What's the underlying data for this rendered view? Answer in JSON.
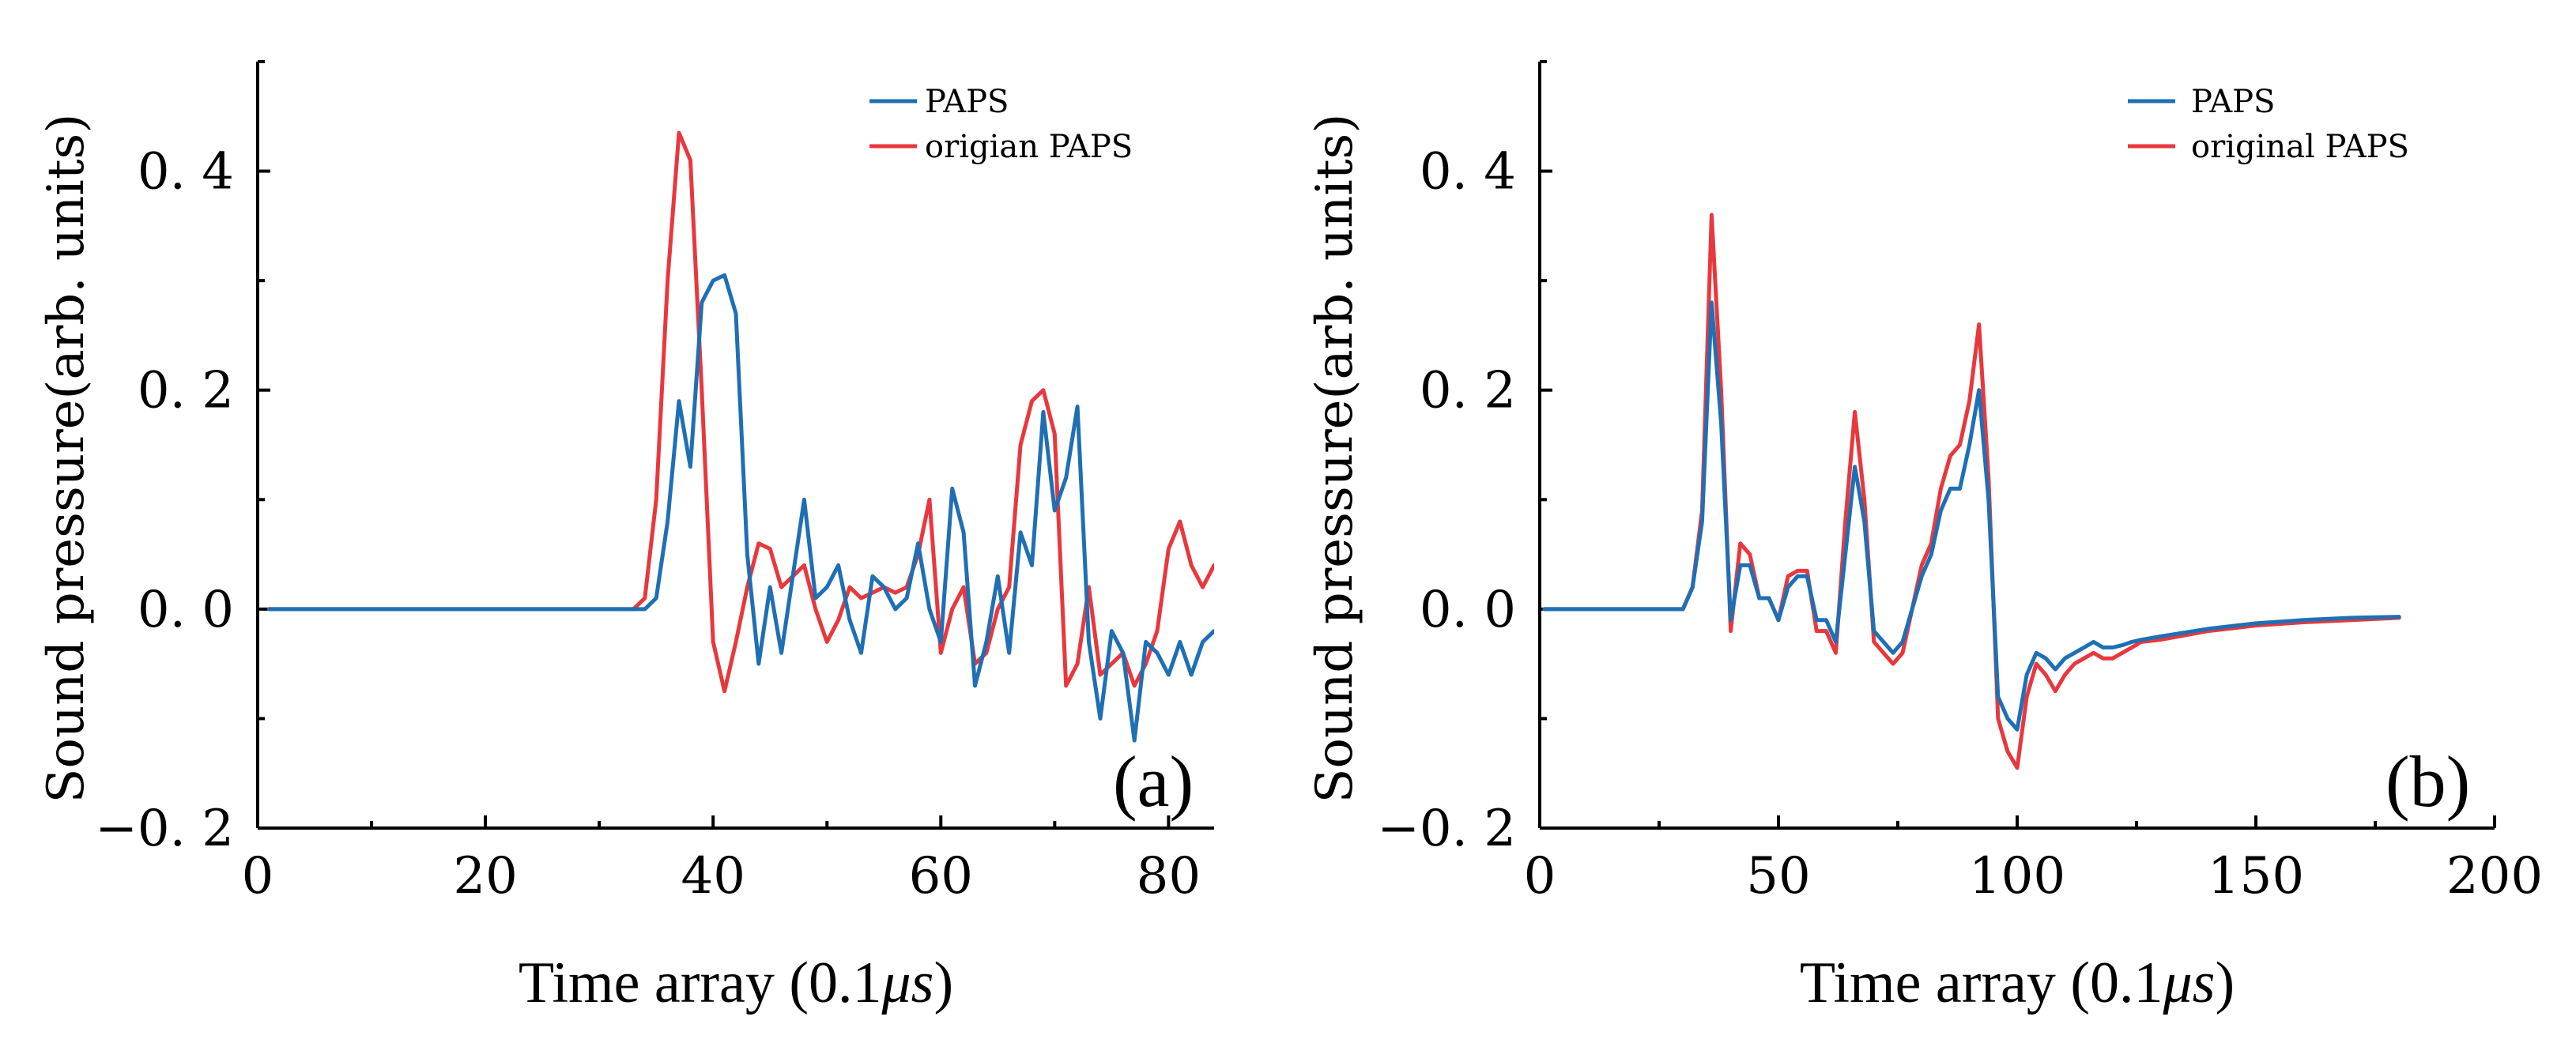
{
  "chart_data": [
    {
      "type": "line",
      "panel_label": "(a)",
      "xlabel": "Time array (0.1",
      "xlabel_unit": "μs",
      "xlabel_close": ")",
      "ylabel": "Sound pressure(arb. units)",
      "xlim": [
        0,
        84
      ],
      "ylim": [
        -0.2,
        0.5
      ],
      "xticks": [
        0,
        20,
        40,
        60,
        80
      ],
      "xtick_labels": [
        "0",
        "20",
        "40",
        "60",
        "80"
      ],
      "yticks": [
        -0.2,
        0.0,
        0.2,
        0.4
      ],
      "ytick_labels": [
        "−0. 2",
        "0. 0",
        "0. 2",
        "0. 4"
      ],
      "legend_position": "top-right",
      "series": [
        {
          "name": "PAPS",
          "color": "#1f6fb4",
          "x": [
            1,
            33,
            34,
            35,
            36,
            37,
            38,
            39,
            40,
            41,
            42,
            43,
            44,
            45,
            46,
            47,
            48,
            49,
            50,
            51,
            52,
            53,
            54,
            55,
            56,
            57,
            58,
            59,
            60,
            61,
            62,
            63,
            64,
            65,
            66,
            67,
            68,
            69,
            70,
            71,
            72,
            73,
            74,
            75,
            76,
            77,
            78,
            79,
            80,
            81,
            82,
            83,
            84
          ],
          "y": [
            0,
            0,
            0,
            0.01,
            0.08,
            0.19,
            0.13,
            0.28,
            0.3,
            0.305,
            0.27,
            0.05,
            -0.05,
            0.02,
            -0.04,
            0.03,
            0.1,
            0.01,
            0.02,
            0.04,
            -0.01,
            -0.04,
            0.03,
            0.02,
            0.0,
            0.01,
            0.06,
            0.0,
            -0.03,
            0.11,
            0.07,
            -0.07,
            -0.03,
            0.03,
            -0.04,
            0.07,
            0.04,
            0.18,
            0.09,
            0.12,
            0.185,
            -0.03,
            -0.1,
            -0.02,
            -0.04,
            -0.12,
            -0.03,
            -0.04,
            -0.06,
            -0.03,
            -0.06,
            -0.03,
            -0.02
          ]
        },
        {
          "name": "origian PAPS",
          "color": "#e8383d",
          "x": [
            1,
            33,
            34,
            35,
            36,
            37,
            38,
            39,
            40,
            41,
            42,
            43,
            44,
            45,
            46,
            47,
            48,
            49,
            50,
            51,
            52,
            53,
            54,
            55,
            56,
            57,
            58,
            59,
            60,
            61,
            62,
            63,
            64,
            65,
            66,
            67,
            68,
            69,
            70,
            71,
            72,
            73,
            74,
            75,
            76,
            77,
            78,
            79,
            80,
            81,
            82,
            83,
            84
          ],
          "y": [
            0,
            0,
            0.01,
            0.1,
            0.3,
            0.435,
            0.41,
            0.2,
            -0.03,
            -0.075,
            -0.03,
            0.02,
            0.06,
            0.055,
            0.02,
            0.03,
            0.04,
            0.0,
            -0.03,
            -0.01,
            0.02,
            0.01,
            0.015,
            0.02,
            0.015,
            0.02,
            0.05,
            0.1,
            -0.04,
            0.0,
            0.02,
            -0.05,
            -0.04,
            0.0,
            0.02,
            0.15,
            0.19,
            0.2,
            0.16,
            -0.07,
            -0.05,
            0.02,
            -0.06,
            -0.05,
            -0.04,
            -0.07,
            -0.05,
            -0.02,
            0.055,
            0.08,
            0.04,
            0.02,
            0.04
          ]
        }
      ]
    },
    {
      "type": "line",
      "panel_label": "(b)",
      "xlabel": "Time array (0.1",
      "xlabel_unit": "μs",
      "xlabel_close": ")",
      "ylabel": "Sound pressure(arb. units)",
      "xlim": [
        0,
        200
      ],
      "ylim": [
        -0.2,
        0.5
      ],
      "xticks": [
        0,
        50,
        100,
        150,
        200
      ],
      "xtick_labels": [
        "0",
        "50",
        "100",
        "150",
        "200"
      ],
      "yticks": [
        -0.2,
        0.0,
        0.2,
        0.4
      ],
      "ytick_labels": [
        "−0. 2",
        "0. 0",
        "0. 2",
        "0. 4"
      ],
      "legend_position": "top-right",
      "series": [
        {
          "name": "PAPS",
          "color": "#1f6fb4",
          "x": [
            1,
            30,
            32,
            34,
            36,
            38,
            40,
            42,
            44,
            46,
            48,
            50,
            52,
            54,
            56,
            58,
            60,
            62,
            64,
            66,
            68,
            70,
            72,
            74,
            76,
            78,
            80,
            82,
            84,
            86,
            88,
            90,
            92,
            94,
            96,
            98,
            100,
            102,
            104,
            106,
            108,
            110,
            112,
            114,
            116,
            118,
            120,
            122,
            124,
            126,
            130,
            140,
            150,
            160,
            170,
            180
          ],
          "y": [
            0,
            0,
            0.02,
            0.08,
            0.28,
            0.17,
            -0.01,
            0.04,
            0.04,
            0.01,
            0.01,
            -0.01,
            0.02,
            0.03,
            0.03,
            -0.01,
            -0.01,
            -0.03,
            0.05,
            0.13,
            0.08,
            -0.02,
            -0.03,
            -0.04,
            -0.03,
            0.0,
            0.03,
            0.05,
            0.09,
            0.11,
            0.11,
            0.15,
            0.2,
            0.1,
            -0.08,
            -0.1,
            -0.11,
            -0.06,
            -0.04,
            -0.045,
            -0.055,
            -0.045,
            -0.04,
            -0.035,
            -0.03,
            -0.035,
            -0.035,
            -0.033,
            -0.03,
            -0.028,
            -0.025,
            -0.018,
            -0.013,
            -0.01,
            -0.008,
            -0.007
          ]
        },
        {
          "name": "original PAPS",
          "color": "#e8383d",
          "x": [
            1,
            30,
            32,
            34,
            36,
            38,
            40,
            42,
            44,
            46,
            48,
            50,
            52,
            54,
            56,
            58,
            60,
            62,
            64,
            66,
            68,
            70,
            72,
            74,
            76,
            78,
            80,
            82,
            84,
            86,
            88,
            90,
            92,
            94,
            96,
            98,
            100,
            102,
            104,
            106,
            108,
            110,
            112,
            114,
            116,
            118,
            120,
            122,
            124,
            126,
            130,
            140,
            150,
            160,
            170,
            180
          ],
          "y": [
            0,
            0,
            0.02,
            0.09,
            0.36,
            0.2,
            -0.02,
            0.06,
            0.05,
            0.01,
            0.01,
            -0.01,
            0.03,
            0.035,
            0.035,
            -0.02,
            -0.02,
            -0.04,
            0.08,
            0.18,
            0.1,
            -0.03,
            -0.04,
            -0.05,
            -0.04,
            0.0,
            0.04,
            0.06,
            0.11,
            0.14,
            0.15,
            0.19,
            0.26,
            0.12,
            -0.1,
            -0.13,
            -0.145,
            -0.08,
            -0.05,
            -0.06,
            -0.075,
            -0.06,
            -0.05,
            -0.045,
            -0.04,
            -0.045,
            -0.045,
            -0.04,
            -0.035,
            -0.03,
            -0.028,
            -0.02,
            -0.015,
            -0.012,
            -0.01,
            -0.008
          ]
        }
      ]
    }
  ]
}
